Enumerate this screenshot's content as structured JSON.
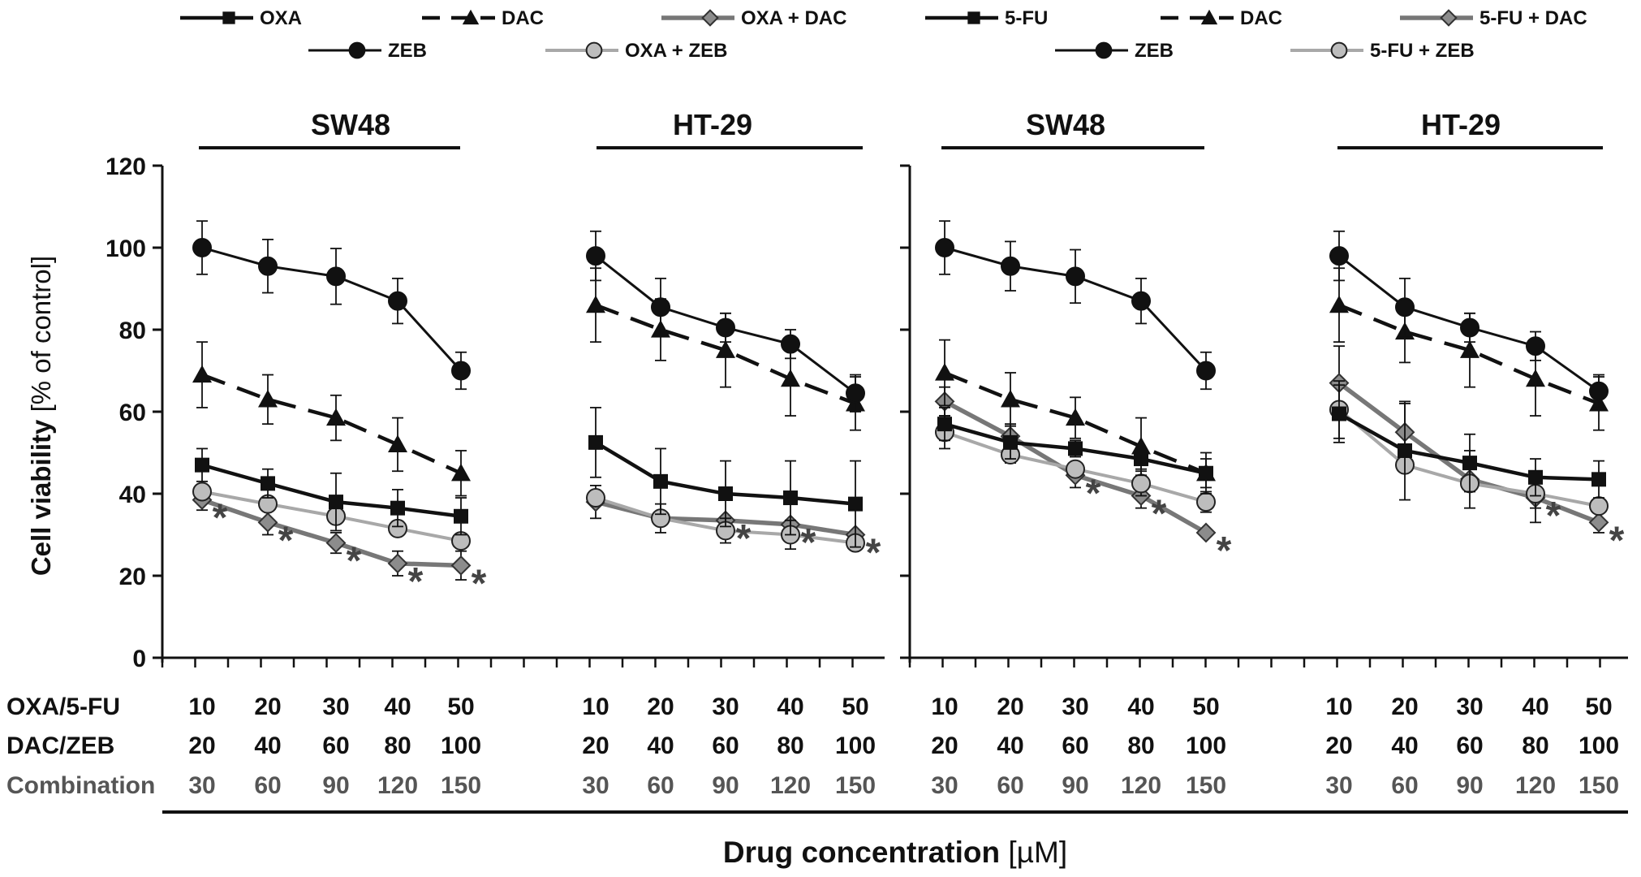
{
  "chart_data": {
    "type": "line",
    "ylabel": "Cell viability",
    "ylabel_unit": "[% of control]",
    "xlabel": "Drug concentration",
    "xlabel_unit": "[µM]",
    "ylim": [
      0,
      120
    ],
    "yticks": [
      "0",
      "20",
      "40",
      "60",
      "80",
      "100",
      "120"
    ],
    "row_labels": [
      "OXA/5-FU",
      "DAC/ZEB",
      "Combination"
    ],
    "tick_rows": [
      [
        "10",
        "20",
        "30",
        "40",
        "50"
      ],
      [
        "20",
        "40",
        "60",
        "80",
        "100"
      ],
      [
        "30",
        "60",
        "90",
        "120",
        "150"
      ]
    ],
    "legends": [
      {
        "row1": [
          "OXA",
          "DAC",
          "OXA + DAC"
        ],
        "row2": [
          "ZEB",
          "OXA + ZEB"
        ]
      },
      {
        "row1": [
          "5-FU",
          "DAC",
          "5-FU + DAC"
        ],
        "row2": [
          "ZEB",
          "5-FU + ZEB"
        ]
      }
    ],
    "panels": [
      {
        "title": "SW48",
        "series": [
          {
            "name": "ZEB",
            "style": "zeb",
            "values": [
              100,
              95.5,
              93,
              87,
              70
            ],
            "err": [
              6.5,
              6.5,
              6.8,
              5.5,
              4.5
            ]
          },
          {
            "name": "DAC",
            "style": "dac",
            "values": [
              69,
              63,
              58.5,
              52,
              45
            ],
            "err": [
              8,
              6,
              5.5,
              6.5,
              5.5
            ]
          },
          {
            "name": "OXA",
            "style": "drug",
            "values": [
              47,
              42.5,
              38,
              36.5,
              34.5
            ],
            "err": [
              4,
              3.5,
              7,
              4.5,
              4.5
            ]
          },
          {
            "name": "OXA + ZEB",
            "style": "combo_zeb",
            "values": [
              40.5,
              37.5,
              34.5,
              31.5,
              28.5
            ],
            "err": [
              0,
              0,
              0,
              0,
              0
            ]
          },
          {
            "name": "OXA + DAC",
            "style": "combo_dac",
            "values": [
              38.5,
              33,
              28,
              23,
              22.5
            ],
            "err": [
              2.5,
              3,
              2.5,
              3,
              3.5
            ]
          }
        ],
        "stars": [
          0,
          1,
          2,
          3,
          4
        ]
      },
      {
        "title": "HT-29",
        "series": [
          {
            "name": "ZEB",
            "style": "zeb",
            "values": [
              98,
              85.5,
              80.5,
              76.5,
              64.5
            ],
            "err": [
              6,
              7,
              3.5,
              3.5,
              4.5
            ]
          },
          {
            "name": "DAC",
            "style": "dac",
            "values": [
              86,
              80,
              75,
              68,
              62
            ],
            "err": [
              9,
              7.5,
              9,
              9,
              6.5
            ]
          },
          {
            "name": "OXA",
            "style": "drug",
            "values": [
              52.5,
              43,
              40,
              39,
              37.5
            ],
            "err": [
              8.5,
              8,
              8,
              9,
              10.5
            ]
          },
          {
            "name": "OXA + ZEB",
            "style": "combo_zeb",
            "values": [
              39,
              34,
              31,
              30,
              28
            ],
            "err": [
              0,
              0,
              3,
              3.5,
              0
            ]
          },
          {
            "name": "OXA + DAC",
            "style": "combo_dac",
            "values": [
              38,
              34,
              33.5,
              32.5,
              30
            ],
            "err": [
              4,
              3.5,
              0,
              0,
              0
            ]
          }
        ],
        "stars": [
          2,
          3,
          4
        ]
      },
      {
        "title": "SW48",
        "series": [
          {
            "name": "ZEB",
            "style": "zeb",
            "values": [
              100,
              95.5,
              93,
              87,
              70
            ],
            "err": [
              6.5,
              6,
              6.5,
              5.5,
              4.5
            ]
          },
          {
            "name": "DAC",
            "style": "dac",
            "values": [
              69.5,
              63,
              58.5,
              51.5,
              45
            ],
            "err": [
              8,
              6.5,
              5,
              7,
              5
            ]
          },
          {
            "name": "5-FU",
            "style": "drug",
            "values": [
              57,
              52.5,
              51,
              48.5,
              45
            ],
            "err": [
              4,
              4,
              2,
              2.5,
              3.5
            ]
          },
          {
            "name": "5-FU + ZEB",
            "style": "combo_zeb",
            "values": [
              55,
              49.5,
              46,
              42.5,
              38
            ],
            "err": [
              4,
              2,
              0,
              3,
              2.5
            ]
          },
          {
            "name": "5-FU + DAC",
            "style": "combo_dac",
            "values": [
              62.5,
              54,
              44.5,
              39.5,
              30.5
            ],
            "err": [
              3.5,
              3,
              3,
              3,
              0
            ]
          }
        ],
        "stars": [
          2,
          3,
          4
        ]
      },
      {
        "title": "HT-29",
        "series": [
          {
            "name": "ZEB",
            "style": "zeb",
            "values": [
              98,
              85.5,
              80.5,
              76,
              65
            ],
            "err": [
              6,
              7,
              3.5,
              3.5,
              4
            ]
          },
          {
            "name": "DAC",
            "style": "dac",
            "values": [
              86,
              79.5,
              75,
              68,
              62
            ],
            "err": [
              9,
              7.5,
              9,
              9,
              6.5
            ]
          },
          {
            "name": "5-FU",
            "style": "drug",
            "values": [
              59.5,
              50.5,
              47.5,
              44,
              43.5
            ],
            "err": [
              7,
              12,
              7,
              4.5,
              4.5
            ]
          },
          {
            "name": "5-FU + ZEB",
            "style": "combo_zeb",
            "values": [
              60.5,
              47,
              42.5,
              40,
              37
            ],
            "err": [
              7,
              0,
              0,
              3.5,
              0
            ]
          },
          {
            "name": "5-FU + DAC",
            "style": "combo_dac",
            "values": [
              67,
              55,
              43.5,
              39,
              33
            ],
            "err": [
              9,
              7,
              7,
              6,
              2.5
            ]
          }
        ],
        "stars": [
          3,
          4
        ]
      }
    ]
  }
}
